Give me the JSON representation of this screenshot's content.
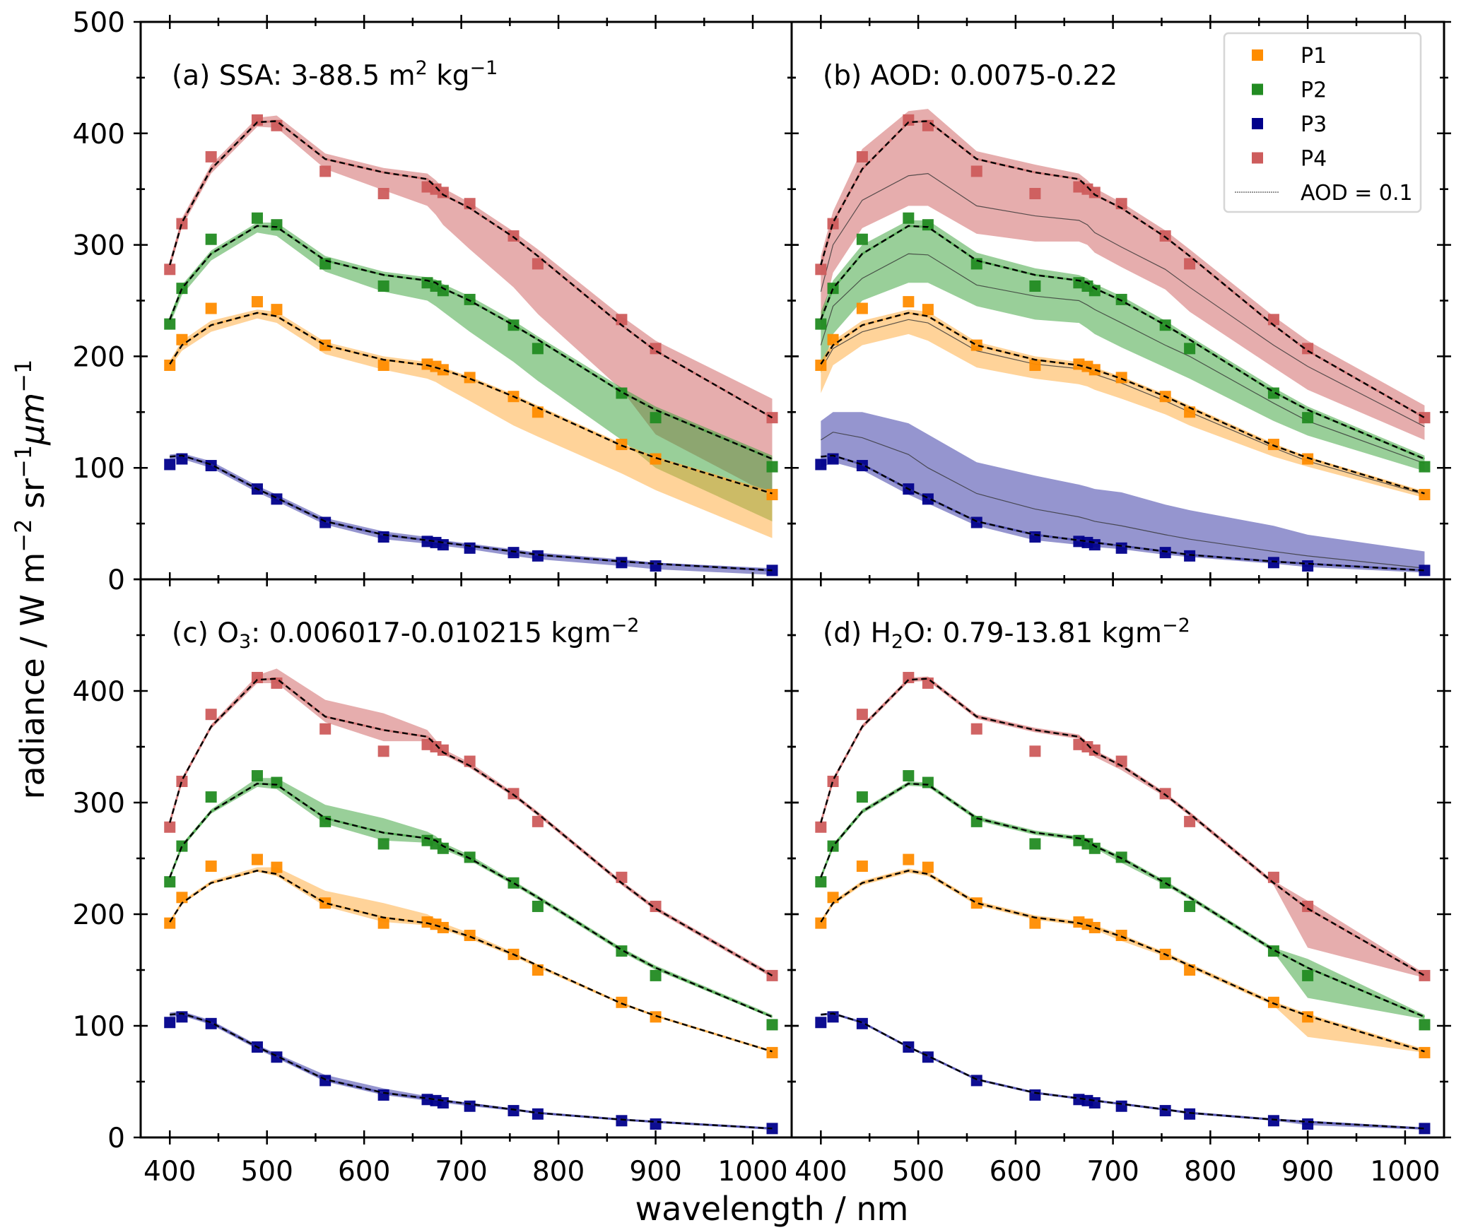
{
  "chart_data": {
    "type": "line",
    "xlabel": "wavelength / nm",
    "ylabel_parts": {
      "base": "radiance  / W m",
      "exp1": "−2",
      "mid": " sr",
      "exp2": "−1",
      "mu": "μm",
      "exp3": "−1"
    },
    "xlim": [
      370,
      1040
    ],
    "ylim": [
      0,
      500
    ],
    "xticks": [
      400,
      500,
      600,
      700,
      800,
      900,
      1000
    ],
    "yticks": [
      0,
      100,
      200,
      300,
      400,
      500
    ],
    "yticks_bottom_row": [
      0,
      100,
      200,
      300,
      400
    ],
    "grid": false,
    "legend": {
      "placement": "top-right of panel (b)",
      "entries": [
        {
          "label": "P1",
          "kind": "marker",
          "color": "#ff8c00"
        },
        {
          "label": "P2",
          "kind": "marker",
          "color": "#228b22"
        },
        {
          "label": "P3",
          "kind": "marker",
          "color": "#00008b"
        },
        {
          "label": "P4",
          "kind": "marker",
          "color": "#cd5c5c"
        },
        {
          "label": "AOD = 0.1",
          "kind": "line",
          "color": "#555555"
        }
      ]
    },
    "wavelengths": [
      400,
      412.5,
      442.5,
      490,
      510,
      560,
      620,
      665,
      673.75,
      681.25,
      708.75,
      753.75,
      778.75,
      865,
      900,
      1020
    ],
    "series": [
      {
        "name": "P1",
        "color": "#ff8c00",
        "band_color": "#ffa733",
        "observed": [
          192,
          215,
          243,
          249,
          242,
          210,
          192,
          193,
          191,
          188,
          181,
          164,
          150,
          121,
          108,
          76
        ],
        "model": [
          193,
          210,
          228,
          239,
          236,
          210,
          197,
          192,
          190,
          188,
          180,
          164,
          154,
          120,
          109,
          77
        ]
      },
      {
        "name": "P2",
        "color": "#228b22",
        "band_color": "#33a033",
        "observed": [
          229,
          261,
          305,
          324,
          318,
          283,
          263,
          266,
          263,
          259,
          251,
          228,
          207,
          167,
          145,
          101
        ],
        "model": [
          233,
          261,
          292,
          317,
          316,
          286,
          273,
          268,
          266,
          261,
          250,
          228,
          215,
          168,
          152,
          108
        ]
      },
      {
        "name": "P3",
        "color": "#00008b",
        "band_color": "#2b2ba0",
        "observed": [
          103,
          108,
          102,
          81,
          72,
          51,
          38,
          34,
          33,
          31,
          28,
          24,
          21,
          15,
          12,
          8
        ],
        "model": [
          110,
          111,
          103,
          81,
          73,
          52,
          40,
          35,
          34,
          33,
          30,
          25,
          22,
          16,
          14,
          8
        ]
      },
      {
        "name": "P4",
        "color": "#cd5c5c",
        "band_color": "#cd5c5c",
        "observed": [
          278,
          319,
          379,
          412,
          407,
          366,
          346,
          352,
          350,
          347,
          337,
          308,
          283,
          233,
          207,
          145
        ],
        "model": [
          282,
          320,
          368,
          410,
          411,
          377,
          365,
          359,
          352,
          345,
          333,
          307,
          290,
          228,
          205,
          145
        ]
      }
    ],
    "panels": [
      {
        "id": "a",
        "title_parts": {
          "text": "(a) SSA: 3-88.5 m",
          "sup1": "2",
          "text2": " kg",
          "sup2": "−1"
        },
        "bands": {
          "P1": {
            "upper": [
              196,
              214,
              232,
              242,
              240,
              213,
              200,
              195,
              193,
              190,
              182,
              166,
              156,
              122,
              110,
              79
            ],
            "lower": [
              190,
              205,
              222,
              234,
              230,
              202,
              188,
              180,
              177,
              173,
              160,
              138,
              128,
              95,
              80,
              37
            ]
          },
          "P2": {
            "upper": [
              236,
              264,
              295,
              320,
              320,
              290,
              276,
              271,
              269,
              265,
              254,
              232,
              218,
              172,
              155,
              111
            ],
            "lower": [
              228,
              255,
              286,
              311,
              308,
              276,
              258,
              250,
              245,
              240,
              222,
              195,
              178,
              125,
              100,
              52
            ]
          },
          "P4": {
            "upper": [
              286,
              324,
              372,
              414,
              416,
              382,
              369,
              364,
              358,
              351,
              338,
              312,
              296,
              236,
              214,
              162
            ],
            "lower": [
              278,
              316,
              364,
              406,
              405,
              368,
              349,
              335,
              327,
              318,
              296,
              262,
              238,
              170,
              130,
              75
            ]
          },
          "P3": {
            "upper": [
              112,
              113,
              106,
              84,
              76,
              55,
              43,
              38,
              37,
              35,
              32,
              27,
              24,
              18,
              15,
              10
            ],
            "lower": [
              108,
              108,
              100,
              78,
              70,
              49,
              36,
              32,
              31,
              30,
              27,
              21,
              18,
              12,
              9,
              4
            ]
          }
        },
        "aod_line": null
      },
      {
        "id": "b",
        "title_parts": {
          "text": "(b) AOD: 0.0075-0.22",
          "sup1": "",
          "text2": "",
          "sup2": ""
        },
        "bands": {
          "P1": {
            "upper": [
              196,
              214,
              232,
              242,
              240,
              213,
              200,
              195,
              193,
              190,
              182,
              166,
              156,
              122,
              110,
              79
            ],
            "lower": [
              167,
              192,
              210,
              220,
              214,
              190,
              180,
              175,
              173,
              170,
              162,
              148,
              138,
              110,
              101,
              73
            ]
          },
          "P2": {
            "upper": [
              240,
              268,
              300,
              322,
              322,
              293,
              279,
              273,
              270,
              265,
              254,
              232,
              218,
              172,
              155,
              111
            ],
            "lower": [
              185,
              220,
              250,
              266,
              266,
              245,
              233,
              230,
              225,
              220,
              208,
              190,
              180,
              142,
              129,
              97
            ]
          },
          "P4": {
            "upper": [
              290,
              330,
              386,
              420,
              422,
              384,
              372,
              364,
              358,
              351,
              338,
              313,
              296,
              236,
              214,
              156
            ],
            "lower": [
              230,
              275,
              315,
              335,
              335,
              310,
              303,
              303,
              300,
              293,
              280,
              260,
              240,
              190,
              170,
              125
            ]
          },
          "P3": {
            "upper": [
              142,
              150,
              150,
              140,
              130,
              105,
              93,
              85,
              83,
              81,
              78,
              67,
              62,
              48,
              40,
              25
            ],
            "lower": [
              100,
              105,
              98,
              76,
              68,
              48,
              35,
              31,
              30,
              29,
              27,
              22,
              20,
              14,
              11,
              6
            ]
          }
        },
        "aod_line": {
          "P1": [
            188,
            207,
            222,
            233,
            230,
            205,
            193,
            189,
            187,
            184,
            176,
            160,
            150,
            118,
            106,
            76
          ],
          "P2": [
            210,
            245,
            270,
            292,
            291,
            264,
            254,
            250,
            246,
            242,
            230,
            210,
            200,
            158,
            142,
            104
          ],
          "P3": [
            125,
            132,
            127,
            112,
            100,
            77,
            63,
            56,
            54,
            52,
            48,
            40,
            36,
            25,
            21,
            10
          ],
          "P4": [
            258,
            300,
            340,
            362,
            364,
            335,
            326,
            322,
            318,
            311,
            298,
            278,
            262,
            210,
            191,
            137
          ]
        }
      },
      {
        "id": "c",
        "title_parts": {
          "text": "(c) O",
          "sub": "3",
          "text2": ": 0.006017-0.010215 kgm",
          "sup2": "−2"
        },
        "bands": {
          "P1": {
            "upper": [
              194,
              212,
              230,
              242,
              242,
              221,
              210,
              200,
              196,
              192,
              183,
              166,
              155,
              121,
              110,
              78
            ],
            "lower": [
              192,
              209,
              227,
              238,
              234,
              207,
              193,
              190,
              188,
              186,
              178,
              162,
              152,
              119,
              108,
              76
            ]
          },
          "P2": {
            "upper": [
              235,
              263,
              294,
              322,
              322,
              298,
              286,
              274,
              270,
              264,
              253,
              230,
              217,
              170,
              154,
              110
            ],
            "lower": [
              231,
              259,
              290,
              314,
              312,
              281,
              266,
              264,
              262,
              258,
              248,
              226,
              213,
              166,
              150,
              107
            ]
          },
          "P4": {
            "upper": [
              284,
              322,
              370,
              414,
              420,
              392,
              380,
              365,
              356,
              348,
              336,
              309,
              292,
              230,
              207,
              147
            ],
            "lower": [
              280,
              318,
              366,
              407,
              407,
              372,
              355,
              355,
              350,
              343,
              331,
              305,
              288,
              226,
              203,
              143
            ]
          },
          "P3": {
            "upper": [
              112,
              113,
              105,
              83,
              75,
              56,
              44,
              37,
              36,
              34,
              31,
              26,
              23,
              17,
              15,
              9
            ],
            "lower": [
              108,
              109,
              101,
              79,
              71,
              50,
              38,
              33,
              32,
              31,
              28,
              24,
              21,
              15,
              13,
              7
            ]
          }
        },
        "aod_line": null
      },
      {
        "id": "d",
        "title_parts": {
          "text": "(d) H",
          "sub": "2",
          "text2": "O: 0.79-13.81 kgm",
          "sup2": "−2"
        },
        "bands": {
          "P1": {
            "upper": [
              194,
              212,
              230,
              241,
              238,
              212,
              199,
              194,
              192,
              190,
              182,
              166,
              156,
              122,
              111,
              79
            ],
            "lower": [
              192,
              208,
              226,
              237,
              234,
              208,
              195,
              190,
              188,
              186,
              176,
              162,
              152,
              118,
              90,
              76
            ]
          },
          "P2": {
            "upper": [
              235,
              263,
              294,
              319,
              318,
              288,
              275,
              270,
              268,
              263,
              252,
              230,
              217,
              170,
              160,
              110
            ],
            "lower": [
              231,
              259,
              290,
              315,
              314,
              284,
              271,
              266,
              264,
              259,
              246,
              226,
              213,
              166,
              125,
              106
            ]
          },
          "P4": {
            "upper": [
              284,
              322,
              370,
              412,
              413,
              379,
              367,
              361,
              354,
              347,
              335,
              309,
              292,
              230,
              212,
              147
            ],
            "lower": [
              280,
              318,
              366,
              408,
              409,
              375,
              363,
              357,
              350,
              341,
              329,
              305,
              288,
              226,
              170,
              143
            ]
          },
          "P3": {
            "upper": [
              111,
              112,
              104,
              82,
              74,
              53,
              41,
              36,
              35,
              34,
              31,
              26,
              23,
              17,
              15,
              9
            ],
            "lower": [
              109,
              110,
              102,
              80,
              72,
              51,
              39,
              34,
              33,
              32,
              29,
              24,
              21,
              15,
              11,
              7
            ]
          }
        },
        "aod_line": null
      }
    ]
  }
}
